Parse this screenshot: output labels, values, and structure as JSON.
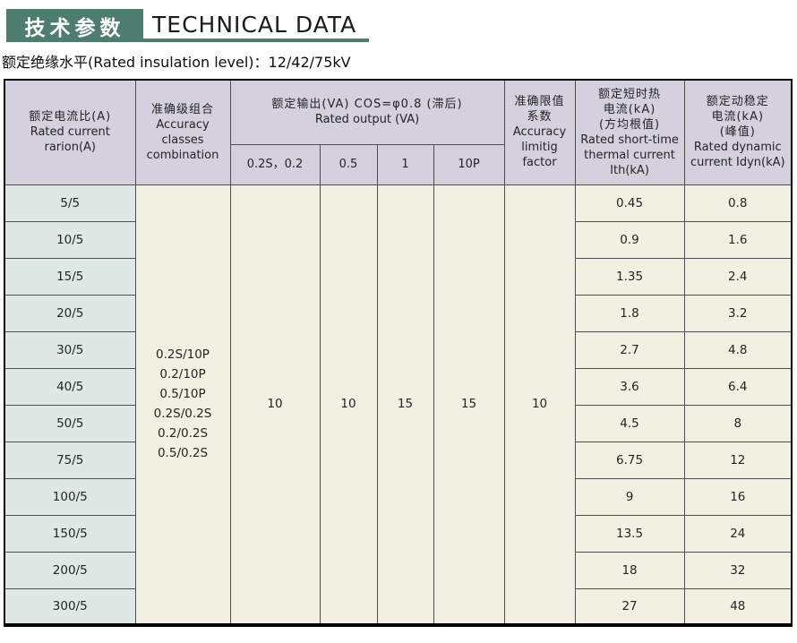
{
  "page": {
    "title_zh": "技术参数",
    "title_en": "TECHNICAL DATA",
    "subtitle": "额定绝缘水平(Rated insulation level)：12/42/75kV"
  },
  "colors": {
    "accent_green": "#4e7c6f",
    "header_bg": "#d4d0de",
    "ratio_col_bg": "#dee8e4",
    "body_bg": "#f1f0e3",
    "grid_line": "#4f4f4f",
    "outer_border": "#000000"
  },
  "table": {
    "header": {
      "ratio_lines": [
        "额定电流比(A)",
        "Rated current",
        "rarion(A)"
      ],
      "accuracy_lines": [
        "准确级组合",
        "Accuracy",
        "classes",
        "combination"
      ],
      "output_lines": [
        "额定输出(VA) COS=φ0.8 (滞后)",
        "Rated output (VA)"
      ],
      "output_subcols": [
        "0.2S，0.2",
        "0.5",
        "1",
        "10P"
      ],
      "alf_lines": [
        "准确限值",
        "系数",
        "Accuracy",
        "limitig",
        "factor"
      ],
      "thermal_lines": [
        "额定短时热",
        "电流(kA)",
        "(方均根值)",
        "Rated short-time",
        "thermal current",
        "Ith(kA)"
      ],
      "dynamic_lines": [
        "额定动稳定",
        "电流(kA)",
        "(峰值)",
        "Rated dynamic",
        "current Idyn(kA)"
      ]
    },
    "merged": {
      "accuracy_combinations": [
        "0.2S/10P",
        "0.2/10P",
        "0.5/10P",
        "0.2S/0.2S",
        "0.2/0.2S",
        "0.5/0.2S"
      ],
      "output_values": [
        "10",
        "10",
        "15",
        "15"
      ],
      "accuracy_limiting_factor": "10"
    },
    "rows": [
      {
        "ratio": "5/5",
        "ith": "0.45",
        "idyn": "0.8"
      },
      {
        "ratio": "10/5",
        "ith": "0.9",
        "idyn": "1.6"
      },
      {
        "ratio": "15/5",
        "ith": "1.35",
        "idyn": "2.4"
      },
      {
        "ratio": "20/5",
        "ith": "1.8",
        "idyn": "3.2"
      },
      {
        "ratio": "30/5",
        "ith": "2.7",
        "idyn": "4.8"
      },
      {
        "ratio": "40/5",
        "ith": "3.6",
        "idyn": "6.4"
      },
      {
        "ratio": "50/5",
        "ith": "4.5",
        "idyn": "8"
      },
      {
        "ratio": "75/5",
        "ith": "6.75",
        "idyn": "12"
      },
      {
        "ratio": "100/5",
        "ith": "9",
        "idyn": "16"
      },
      {
        "ratio": "150/5",
        "ith": "13.5",
        "idyn": "24"
      },
      {
        "ratio": "200/5",
        "ith": "18",
        "idyn": "32"
      },
      {
        "ratio": "300/5",
        "ith": "27",
        "idyn": "48"
      }
    ]
  }
}
